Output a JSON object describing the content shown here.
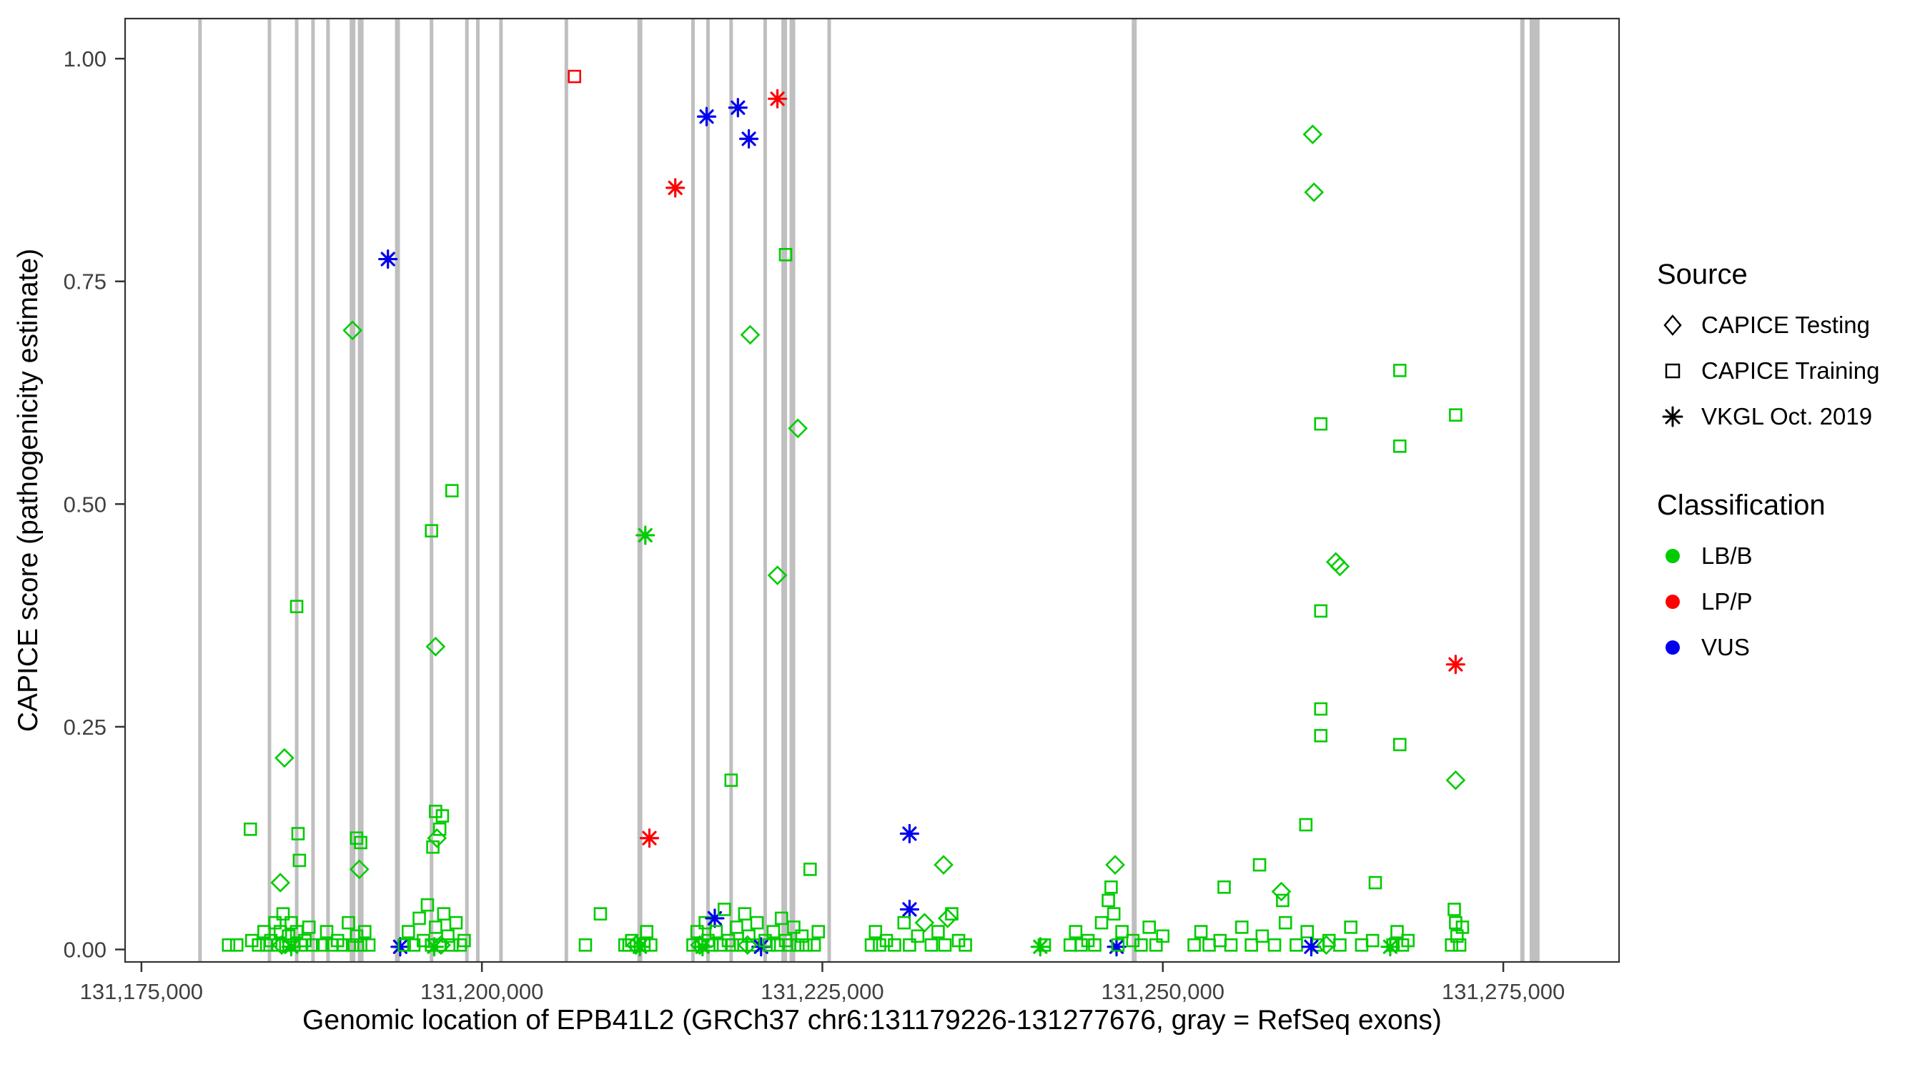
{
  "legend": {
    "source_title": "Source",
    "testing_label": "CAPICE Testing",
    "training_label": "CAPICE Training",
    "vkgl_label": "VKGL Oct. 2019",
    "class_title": "Classification",
    "lbb_label": "LB/B",
    "lpp_label": "LP/P",
    "vus_label": "VUS"
  },
  "chart_data": {
    "type": "scatter",
    "title": "",
    "xlabel": "Genomic location of EPB41L2 (GRCh37 chr6:131179226-131277676, gray = RefSeq exons)",
    "ylabel": "CAPICE score (pathogenicity estimate)",
    "xlim": [
      131173800,
      131283500
    ],
    "ylim": [
      -0.014,
      1.045
    ],
    "grid": false,
    "legend_position": "right",
    "x_ticks": [
      {
        "value": 131175000,
        "label": "131,175,000"
      },
      {
        "value": 131200000,
        "label": "131,200,000"
      },
      {
        "value": 131225000,
        "label": "131,225,000"
      },
      {
        "value": 131250000,
        "label": "131,250,000"
      },
      {
        "value": 131275000,
        "label": "131,275,000"
      }
    ],
    "y_ticks": [
      {
        "value": 0.0,
        "label": "0.00"
      },
      {
        "value": 0.25,
        "label": "0.25"
      },
      {
        "value": 0.5,
        "label": "0.50"
      },
      {
        "value": 0.75,
        "label": "0.75"
      },
      {
        "value": 1.0,
        "label": "1.00"
      }
    ],
    "exon_color": "#bfbfbf",
    "exons": [
      {
        "x": 131179300,
        "w": 5
      },
      {
        "x": 131184400,
        "w": 5
      },
      {
        "x": 131186400,
        "w": 5
      },
      {
        "x": 131187600,
        "w": 5
      },
      {
        "x": 131188700,
        "w": 5
      },
      {
        "x": 131190500,
        "w": 8
      },
      {
        "x": 131191100,
        "w": 8
      },
      {
        "x": 131193800,
        "w": 7
      },
      {
        "x": 131196300,
        "w": 5
      },
      {
        "x": 131198900,
        "w": 5
      },
      {
        "x": 131199700,
        "w": 5
      },
      {
        "x": 131201400,
        "w": 5
      },
      {
        "x": 131206200,
        "w": 5
      },
      {
        "x": 131211600,
        "w": 7
      },
      {
        "x": 131215500,
        "w": 5
      },
      {
        "x": 131216600,
        "w": 5
      },
      {
        "x": 131218300,
        "w": 5
      },
      {
        "x": 131220800,
        "w": 5
      },
      {
        "x": 131222200,
        "w": 8
      },
      {
        "x": 131222800,
        "w": 8
      },
      {
        "x": 131225500,
        "w": 5
      },
      {
        "x": 131247900,
        "w": 7
      },
      {
        "x": 131276400,
        "w": 6
      },
      {
        "x": 131277300,
        "w": 14
      }
    ],
    "sources": {
      "T": "CAPICE Testing",
      "R": "CAPICE Training",
      "V": "VKGL Oct. 2019"
    },
    "classes": {
      "B": {
        "label": "LB/B",
        "color": "#00cc00"
      },
      "P": {
        "label": "LP/P",
        "color": "#ff0000"
      },
      "U": {
        "label": "VUS",
        "color": "#0000ee"
      }
    },
    "points_format": [
      "x",
      "y",
      "source",
      "class"
    ],
    "points": [
      [
        131206800,
        0.98,
        "R",
        "P"
      ],
      [
        131216500,
        0.935,
        "V",
        "U"
      ],
      [
        131218800,
        0.945,
        "V",
        "U"
      ],
      [
        131219600,
        0.91,
        "V",
        "U"
      ],
      [
        131221700,
        0.955,
        "V",
        "P"
      ],
      [
        131214200,
        0.855,
        "V",
        "P"
      ],
      [
        131193100,
        0.775,
        "V",
        "U"
      ],
      [
        131222300,
        0.78,
        "R",
        "B"
      ],
      [
        131190500,
        0.695,
        "T",
        "B"
      ],
      [
        131219700,
        0.69,
        "T",
        "B"
      ],
      [
        131223200,
        0.585,
        "T",
        "B"
      ],
      [
        131221700,
        0.42,
        "T",
        "B"
      ],
      [
        131197800,
        0.515,
        "R",
        "B"
      ],
      [
        131196300,
        0.47,
        "R",
        "B"
      ],
      [
        131212000,
        0.465,
        "V",
        "B"
      ],
      [
        131196600,
        0.34,
        "T",
        "B"
      ],
      [
        131186400,
        0.385,
        "R",
        "B"
      ],
      [
        131185500,
        0.215,
        "T",
        "B"
      ],
      [
        131218300,
        0.19,
        "R",
        "B"
      ],
      [
        131212300,
        0.125,
        "V",
        "P"
      ],
      [
        131231400,
        0.13,
        "V",
        "U"
      ],
      [
        131231400,
        0.045,
        "V",
        "U"
      ],
      [
        131233900,
        0.095,
        "T",
        "B"
      ],
      [
        131246500,
        0.095,
        "T",
        "B"
      ],
      [
        131185200,
        0.075,
        "T",
        "B"
      ],
      [
        131183000,
        0.135,
        "R",
        "B"
      ],
      [
        131186500,
        0.13,
        "R",
        "B"
      ],
      [
        131186600,
        0.1,
        "R",
        "B"
      ],
      [
        131190800,
        0.125,
        "R",
        "B"
      ],
      [
        131191100,
        0.12,
        "R",
        "B"
      ],
      [
        131191000,
        0.09,
        "T",
        "B"
      ],
      [
        131196600,
        0.155,
        "R",
        "B"
      ],
      [
        131197100,
        0.15,
        "R",
        "B"
      ],
      [
        131196900,
        0.135,
        "R",
        "B"
      ],
      [
        131196700,
        0.125,
        "T",
        "B"
      ],
      [
        131196400,
        0.115,
        "R",
        "B"
      ],
      [
        131261000,
        0.915,
        "T",
        "B"
      ],
      [
        131261100,
        0.85,
        "T",
        "B"
      ],
      [
        131261600,
        0.59,
        "R",
        "B"
      ],
      [
        131267400,
        0.65,
        "R",
        "B"
      ],
      [
        131267400,
        0.565,
        "R",
        "B"
      ],
      [
        131271500,
        0.6,
        "R",
        "B"
      ],
      [
        131262700,
        0.435,
        "T",
        "B"
      ],
      [
        131263000,
        0.43,
        "T",
        "B"
      ],
      [
        131261600,
        0.38,
        "R",
        "B"
      ],
      [
        131261600,
        0.27,
        "R",
        "B"
      ],
      [
        131261600,
        0.24,
        "R",
        "B"
      ],
      [
        131267400,
        0.23,
        "R",
        "B"
      ],
      [
        131271500,
        0.32,
        "V",
        "P"
      ],
      [
        131271500,
        0.19,
        "T",
        "B"
      ],
      [
        131260500,
        0.14,
        "R",
        "B"
      ],
      [
        131265600,
        0.075,
        "R",
        "B"
      ],
      [
        131257100,
        0.095,
        "R",
        "B"
      ],
      [
        131254500,
        0.07,
        "R",
        "B"
      ],
      [
        131258700,
        0.065,
        "T",
        "B"
      ],
      [
        131258800,
        0.055,
        "R",
        "B"
      ],
      [
        131181400,
        0.005,
        "R",
        "B"
      ],
      [
        131182000,
        0.005,
        "R",
        "B"
      ],
      [
        131183100,
        0.01,
        "R",
        "B"
      ],
      [
        131183600,
        0.005,
        "R",
        "B"
      ],
      [
        131184000,
        0.02,
        "R",
        "B"
      ],
      [
        131184200,
        0.005,
        "R",
        "B"
      ],
      [
        131184500,
        0.01,
        "R",
        "B"
      ],
      [
        131184800,
        0.03,
        "R",
        "B"
      ],
      [
        131185000,
        0.005,
        "R",
        "B"
      ],
      [
        131185200,
        0.02,
        "R",
        "B"
      ],
      [
        131185400,
        0.04,
        "R",
        "B"
      ],
      [
        131185600,
        0.005,
        "R",
        "B"
      ],
      [
        131185800,
        0.015,
        "R",
        "B"
      ],
      [
        131186000,
        0.03,
        "R",
        "B"
      ],
      [
        131186200,
        0.005,
        "R",
        "B"
      ],
      [
        131186400,
        0.02,
        "R",
        "B"
      ],
      [
        131186700,
        0.005,
        "R",
        "B"
      ],
      [
        131187000,
        0.01,
        "R",
        "B"
      ],
      [
        131187300,
        0.025,
        "R",
        "B"
      ],
      [
        131187600,
        0.005,
        "R",
        "B"
      ],
      [
        131185300,
        0.005,
        "T",
        "B"
      ],
      [
        131186000,
        0.003,
        "V",
        "B"
      ],
      [
        131188300,
        0.005,
        "R",
        "B"
      ],
      [
        131188600,
        0.02,
        "R",
        "B"
      ],
      [
        131189000,
        0.005,
        "R",
        "B"
      ],
      [
        131189400,
        0.01,
        "R",
        "B"
      ],
      [
        131189800,
        0.005,
        "R",
        "B"
      ],
      [
        131190200,
        0.03,
        "R",
        "B"
      ],
      [
        131190500,
        0.005,
        "R",
        "B"
      ],
      [
        131190800,
        0.015,
        "R",
        "B"
      ],
      [
        131191100,
        0.005,
        "R",
        "B"
      ],
      [
        131191400,
        0.02,
        "R",
        "B"
      ],
      [
        131191700,
        0.005,
        "R",
        "B"
      ],
      [
        131194000,
        0.003,
        "V",
        "U"
      ],
      [
        131194300,
        0.005,
        "R",
        "B"
      ],
      [
        131194600,
        0.02,
        "R",
        "B"
      ],
      [
        131195000,
        0.005,
        "R",
        "B"
      ],
      [
        131195400,
        0.035,
        "R",
        "B"
      ],
      [
        131195700,
        0.01,
        "R",
        "B"
      ],
      [
        131196000,
        0.05,
        "R",
        "B"
      ],
      [
        131196300,
        0.005,
        "R",
        "B"
      ],
      [
        131196600,
        0.025,
        "R",
        "B"
      ],
      [
        131196900,
        0.005,
        "R",
        "B"
      ],
      [
        131197200,
        0.04,
        "R",
        "B"
      ],
      [
        131197500,
        0.015,
        "R",
        "B"
      ],
      [
        131197800,
        0.005,
        "R",
        "B"
      ],
      [
        131198100,
        0.03,
        "R",
        "B"
      ],
      [
        131198400,
        0.005,
        "R",
        "B"
      ],
      [
        131198700,
        0.01,
        "R",
        "B"
      ],
      [
        131196500,
        0.003,
        "V",
        "B"
      ],
      [
        131197000,
        0.005,
        "T",
        "B"
      ],
      [
        131208700,
        0.04,
        "R",
        "B"
      ],
      [
        131207600,
        0.005,
        "R",
        "B"
      ],
      [
        131210500,
        0.005,
        "R",
        "B"
      ],
      [
        131210800,
        0.005,
        "R",
        "B"
      ],
      [
        131211000,
        0.01,
        "R",
        "B"
      ],
      [
        131211300,
        0.005,
        "T",
        "B"
      ],
      [
        131211600,
        0.003,
        "V",
        "B"
      ],
      [
        131211900,
        0.005,
        "R",
        "B"
      ],
      [
        131212100,
        0.02,
        "R",
        "B"
      ],
      [
        131212400,
        0.005,
        "R",
        "B"
      ],
      [
        131215500,
        0.005,
        "R",
        "B"
      ],
      [
        131215800,
        0.02,
        "R",
        "B"
      ],
      [
        131216100,
        0.005,
        "R",
        "B"
      ],
      [
        131216400,
        0.03,
        "R",
        "B"
      ],
      [
        131216600,
        0.01,
        "R",
        "B"
      ],
      [
        131216900,
        0.005,
        "R",
        "B"
      ],
      [
        131217100,
        0.035,
        "V",
        "U"
      ],
      [
        131217200,
        0.02,
        "R",
        "B"
      ],
      [
        131217500,
        0.005,
        "R",
        "B"
      ],
      [
        131217800,
        0.045,
        "R",
        "B"
      ],
      [
        131218100,
        0.01,
        "R",
        "B"
      ],
      [
        131218400,
        0.005,
        "R",
        "B"
      ],
      [
        131218700,
        0.025,
        "R",
        "B"
      ],
      [
        131219000,
        0.005,
        "R",
        "B"
      ],
      [
        131219300,
        0.04,
        "R",
        "B"
      ],
      [
        131219600,
        0.015,
        "R",
        "B"
      ],
      [
        131219900,
        0.005,
        "R",
        "B"
      ],
      [
        131220200,
        0.03,
        "R",
        "B"
      ],
      [
        131220500,
        0.003,
        "V",
        "U"
      ],
      [
        131220800,
        0.01,
        "R",
        "B"
      ],
      [
        131221100,
        0.005,
        "R",
        "B"
      ],
      [
        131221400,
        0.02,
        "R",
        "B"
      ],
      [
        131221700,
        0.005,
        "R",
        "B"
      ],
      [
        131222000,
        0.035,
        "R",
        "B"
      ],
      [
        131222300,
        0.01,
        "R",
        "B"
      ],
      [
        131222600,
        0.005,
        "R",
        "B"
      ],
      [
        131222900,
        0.025,
        "R",
        "B"
      ],
      [
        131223200,
        0.005,
        "R",
        "B"
      ],
      [
        131223500,
        0.015,
        "R",
        "B"
      ],
      [
        131223800,
        0.005,
        "R",
        "B"
      ],
      [
        131224100,
        0.09,
        "R",
        "B"
      ],
      [
        131224400,
        0.005,
        "R",
        "B"
      ],
      [
        131224700,
        0.02,
        "R",
        "B"
      ],
      [
        131216000,
        0.005,
        "T",
        "B"
      ],
      [
        131219500,
        0.005,
        "T",
        "B"
      ],
      [
        131216200,
        0.003,
        "V",
        "B"
      ],
      [
        131228600,
        0.005,
        "R",
        "B"
      ],
      [
        131228900,
        0.02,
        "R",
        "B"
      ],
      [
        131229200,
        0.005,
        "R",
        "B"
      ],
      [
        131229700,
        0.01,
        "R",
        "B"
      ],
      [
        131230300,
        0.005,
        "R",
        "B"
      ],
      [
        131231000,
        0.03,
        "R",
        "B"
      ],
      [
        131231400,
        0.005,
        "R",
        "B"
      ],
      [
        131232000,
        0.015,
        "R",
        "B"
      ],
      [
        131232500,
        0.03,
        "T",
        "B"
      ],
      [
        131233000,
        0.005,
        "R",
        "B"
      ],
      [
        131233500,
        0.02,
        "R",
        "B"
      ],
      [
        131234000,
        0.005,
        "R",
        "B"
      ],
      [
        131234500,
        0.04,
        "R",
        "B"
      ],
      [
        131235000,
        0.01,
        "R",
        "B"
      ],
      [
        131235500,
        0.005,
        "R",
        "B"
      ],
      [
        131234200,
        0.035,
        "T",
        "B"
      ],
      [
        131241000,
        0.003,
        "V",
        "B"
      ],
      [
        131241300,
        0.005,
        "R",
        "B"
      ],
      [
        131243200,
        0.005,
        "R",
        "B"
      ],
      [
        131243600,
        0.02,
        "R",
        "B"
      ],
      [
        131244000,
        0.005,
        "R",
        "B"
      ],
      [
        131244500,
        0.01,
        "R",
        "B"
      ],
      [
        131245000,
        0.005,
        "R",
        "B"
      ],
      [
        131245500,
        0.03,
        "R",
        "B"
      ],
      [
        131246000,
        0.055,
        "R",
        "B"
      ],
      [
        131246200,
        0.07,
        "R",
        "B"
      ],
      [
        131246400,
        0.04,
        "R",
        "B"
      ],
      [
        131246600,
        0.003,
        "V",
        "U"
      ],
      [
        131246700,
        0.005,
        "R",
        "B"
      ],
      [
        131247000,
        0.02,
        "R",
        "B"
      ],
      [
        131247800,
        0.01,
        "R",
        "B"
      ],
      [
        131248400,
        0.005,
        "R",
        "B"
      ],
      [
        131249000,
        0.025,
        "R",
        "B"
      ],
      [
        131249500,
        0.005,
        "R",
        "B"
      ],
      [
        131250000,
        0.015,
        "R",
        "B"
      ],
      [
        131252300,
        0.005,
        "R",
        "B"
      ],
      [
        131252800,
        0.02,
        "R",
        "B"
      ],
      [
        131253400,
        0.005,
        "R",
        "B"
      ],
      [
        131254200,
        0.01,
        "R",
        "B"
      ],
      [
        131255000,
        0.005,
        "R",
        "B"
      ],
      [
        131255800,
        0.025,
        "R",
        "B"
      ],
      [
        131256500,
        0.005,
        "R",
        "B"
      ],
      [
        131257300,
        0.015,
        "R",
        "B"
      ],
      [
        131258200,
        0.005,
        "R",
        "B"
      ],
      [
        131259000,
        0.03,
        "R",
        "B"
      ],
      [
        131259800,
        0.005,
        "R",
        "B"
      ],
      [
        131260600,
        0.02,
        "R",
        "B"
      ],
      [
        131261400,
        0.005,
        "R",
        "B"
      ],
      [
        131262200,
        0.01,
        "R",
        "B"
      ],
      [
        131263000,
        0.005,
        "R",
        "B"
      ],
      [
        131263800,
        0.025,
        "R",
        "B"
      ],
      [
        131264600,
        0.005,
        "R",
        "B"
      ],
      [
        131260900,
        0.003,
        "V",
        "U"
      ],
      [
        131262000,
        0.005,
        "T",
        "B"
      ],
      [
        131265400,
        0.01,
        "R",
        "B"
      ],
      [
        131266700,
        0.003,
        "V",
        "B"
      ],
      [
        131266900,
        0.005,
        "R",
        "B"
      ],
      [
        131267200,
        0.02,
        "R",
        "B"
      ],
      [
        131267600,
        0.005,
        "R",
        "B"
      ],
      [
        131268000,
        0.01,
        "R",
        "B"
      ],
      [
        131271200,
        0.005,
        "R",
        "B"
      ],
      [
        131271400,
        0.045,
        "R",
        "B"
      ],
      [
        131271500,
        0.03,
        "R",
        "B"
      ],
      [
        131271600,
        0.015,
        "R",
        "B"
      ],
      [
        131271800,
        0.005,
        "R",
        "B"
      ],
      [
        131272000,
        0.025,
        "R",
        "B"
      ]
    ]
  }
}
